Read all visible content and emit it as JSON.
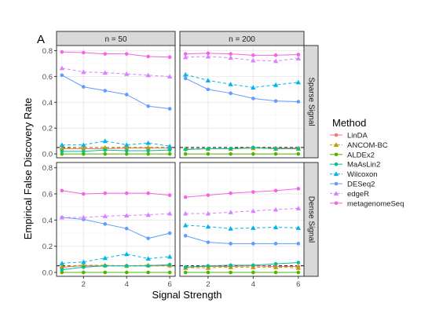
{
  "chart_data": {
    "type": "line",
    "panel_tag": "A",
    "xlabel": "Signal Strength",
    "ylabel": "Empirical False Discovery Rate",
    "x": [
      1,
      2,
      3,
      4,
      5,
      6
    ],
    "xticks": [
      2,
      4,
      6
    ],
    "xlim": [
      0.75,
      6.25
    ],
    "ylim": [
      -0.03,
      0.84
    ],
    "yticks": [
      0.0,
      0.2,
      0.4,
      0.6,
      0.8
    ],
    "ytick_labels": [
      "0.0",
      "0.2",
      "0.4",
      "0.6",
      "0.8"
    ],
    "reference_line": 0.05,
    "grid": true,
    "legend_position": "right",
    "legend_title": "Method",
    "columns": [
      "n = 50",
      "n = 200"
    ],
    "rows": [
      "Sparse Signal",
      "Dense Signal"
    ],
    "methods": [
      {
        "name": "LinDA",
        "color": "#F8766D",
        "marker": "circle",
        "dash": false
      },
      {
        "name": "ANCOM-BC",
        "color": "#C49A00",
        "marker": "triangle",
        "dash": true
      },
      {
        "name": "ALDEx2",
        "color": "#53B400",
        "marker": "circle",
        "dash": false
      },
      {
        "name": "MaAsLin2",
        "color": "#00C094",
        "marker": "circle",
        "dash": false
      },
      {
        "name": "Wilcoxon",
        "color": "#00B6EB",
        "marker": "triangle",
        "dash": true
      },
      {
        "name": "DESeq2",
        "color": "#619CFF",
        "marker": "circle",
        "dash": false
      },
      {
        "name": "edgeR",
        "color": "#D783FF",
        "marker": "triangle",
        "dash": true
      },
      {
        "name": "metagenomeSeq",
        "color": "#F564E3",
        "marker": "circle",
        "dash": false
      }
    ],
    "panels": [
      {
        "row": 0,
        "col": 0,
        "series": {
          "LinDA": [
            0.04,
            0.04,
            0.04,
            0.045,
            0.045,
            0.045
          ],
          "ANCOM-BC": [
            0.045,
            0.05,
            0.05,
            0.05,
            0.05,
            0.05
          ],
          "ALDEx2": [
            0.0,
            0.0,
            0.0,
            0.0,
            0.0,
            0.0
          ],
          "MaAsLin2": [
            0.02,
            0.02,
            0.03,
            0.025,
            0.025,
            0.03
          ],
          "Wilcoxon": [
            0.07,
            0.07,
            0.1,
            0.07,
            0.085,
            0.06
          ],
          "DESeq2": [
            0.61,
            0.52,
            0.49,
            0.46,
            0.37,
            0.35
          ],
          "edgeR": [
            0.665,
            0.635,
            0.63,
            0.62,
            0.61,
            0.6
          ],
          "metagenomeSeq": [
            0.79,
            0.785,
            0.775,
            0.775,
            0.755,
            0.75
          ]
        }
      },
      {
        "row": 0,
        "col": 1,
        "series": {
          "LinDA": [
            0.035,
            0.04,
            0.04,
            0.045,
            0.045,
            0.045
          ],
          "ANCOM-BC": [
            0.04,
            0.04,
            0.04,
            0.045,
            0.04,
            0.04
          ],
          "ALDEx2": [
            0.0,
            0.0,
            0.0,
            0.0,
            0.0,
            0.0
          ],
          "MaAsLin2": [
            0.035,
            0.04,
            0.04,
            0.05,
            0.04,
            0.04
          ],
          "Wilcoxon": [
            0.615,
            0.57,
            0.54,
            0.515,
            0.535,
            0.555
          ],
          "DESeq2": [
            0.585,
            0.5,
            0.47,
            0.43,
            0.41,
            0.405
          ],
          "edgeR": [
            0.75,
            0.755,
            0.745,
            0.725,
            0.72,
            0.74
          ],
          "metagenomeSeq": [
            0.775,
            0.78,
            0.775,
            0.765,
            0.765,
            0.77
          ]
        }
      },
      {
        "row": 1,
        "col": 0,
        "series": {
          "LinDA": [
            0.04,
            0.05,
            0.05,
            0.05,
            0.05,
            0.05
          ],
          "ANCOM-BC": [
            0.045,
            0.055,
            0.055,
            0.05,
            0.055,
            0.055
          ],
          "ALDEx2": [
            0.0,
            0.0,
            0.0,
            0.0,
            0.0,
            0.0
          ],
          "MaAsLin2": [
            0.02,
            0.04,
            0.05,
            0.05,
            0.05,
            0.06
          ],
          "Wilcoxon": [
            0.07,
            0.08,
            0.11,
            0.14,
            0.105,
            0.12
          ],
          "DESeq2": [
            0.42,
            0.405,
            0.37,
            0.335,
            0.26,
            0.3
          ],
          "edgeR": [
            0.42,
            0.42,
            0.43,
            0.435,
            0.44,
            0.45
          ],
          "metagenomeSeq": [
            0.625,
            0.6,
            0.605,
            0.605,
            0.605,
            0.59
          ]
        }
      },
      {
        "row": 1,
        "col": 1,
        "series": {
          "LinDA": [
            0.04,
            0.045,
            0.045,
            0.05,
            0.045,
            0.045
          ],
          "ANCOM-BC": [
            0.035,
            0.035,
            0.04,
            0.04,
            0.04,
            0.035
          ],
          "ALDEx2": [
            0.0,
            0.0,
            0.0,
            0.0,
            0.0,
            0.0
          ],
          "MaAsLin2": [
            0.04,
            0.05,
            0.055,
            0.055,
            0.065,
            0.075
          ],
          "Wilcoxon": [
            0.36,
            0.35,
            0.335,
            0.34,
            0.345,
            0.34
          ],
          "DESeq2": [
            0.28,
            0.23,
            0.22,
            0.22,
            0.22,
            0.22
          ],
          "edgeR": [
            0.45,
            0.45,
            0.46,
            0.47,
            0.48,
            0.49
          ],
          "metagenomeSeq": [
            0.575,
            0.59,
            0.605,
            0.615,
            0.625,
            0.64
          ]
        }
      }
    ]
  }
}
